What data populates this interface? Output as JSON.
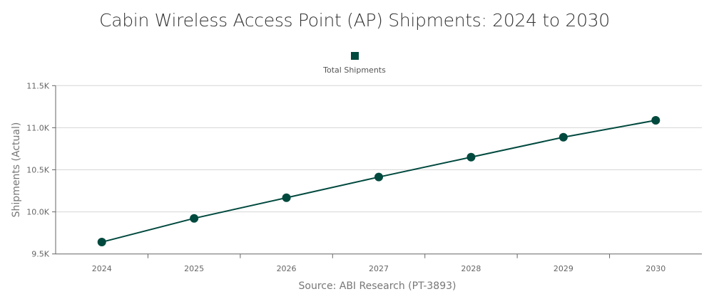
{
  "chart_data": {
    "type": "line",
    "title": "Cabin Wireless Access Point (AP) Shipments: 2024 to 2030",
    "categories": [
      "2024",
      "2025",
      "2026",
      "2027",
      "2028",
      "2029",
      "2030"
    ],
    "series": [
      {
        "name": "Total Shipments",
        "values": [
          9641,
          9923,
          10168,
          10414,
          10650,
          10887,
          11088
        ],
        "color": "#00493e"
      }
    ],
    "xlabel": "Source: ABI Research (PT-3893)",
    "ylabel": "Shipments (Actual)",
    "ylim": [
      9500,
      11500
    ],
    "yticks": [
      9500,
      10000,
      10500,
      11000,
      11500
    ],
    "ytick_labels": [
      "9.5K",
      "10.0K",
      "10.5K",
      "11.0K",
      "11.5K"
    ],
    "grid": true,
    "legend_position": "top"
  }
}
